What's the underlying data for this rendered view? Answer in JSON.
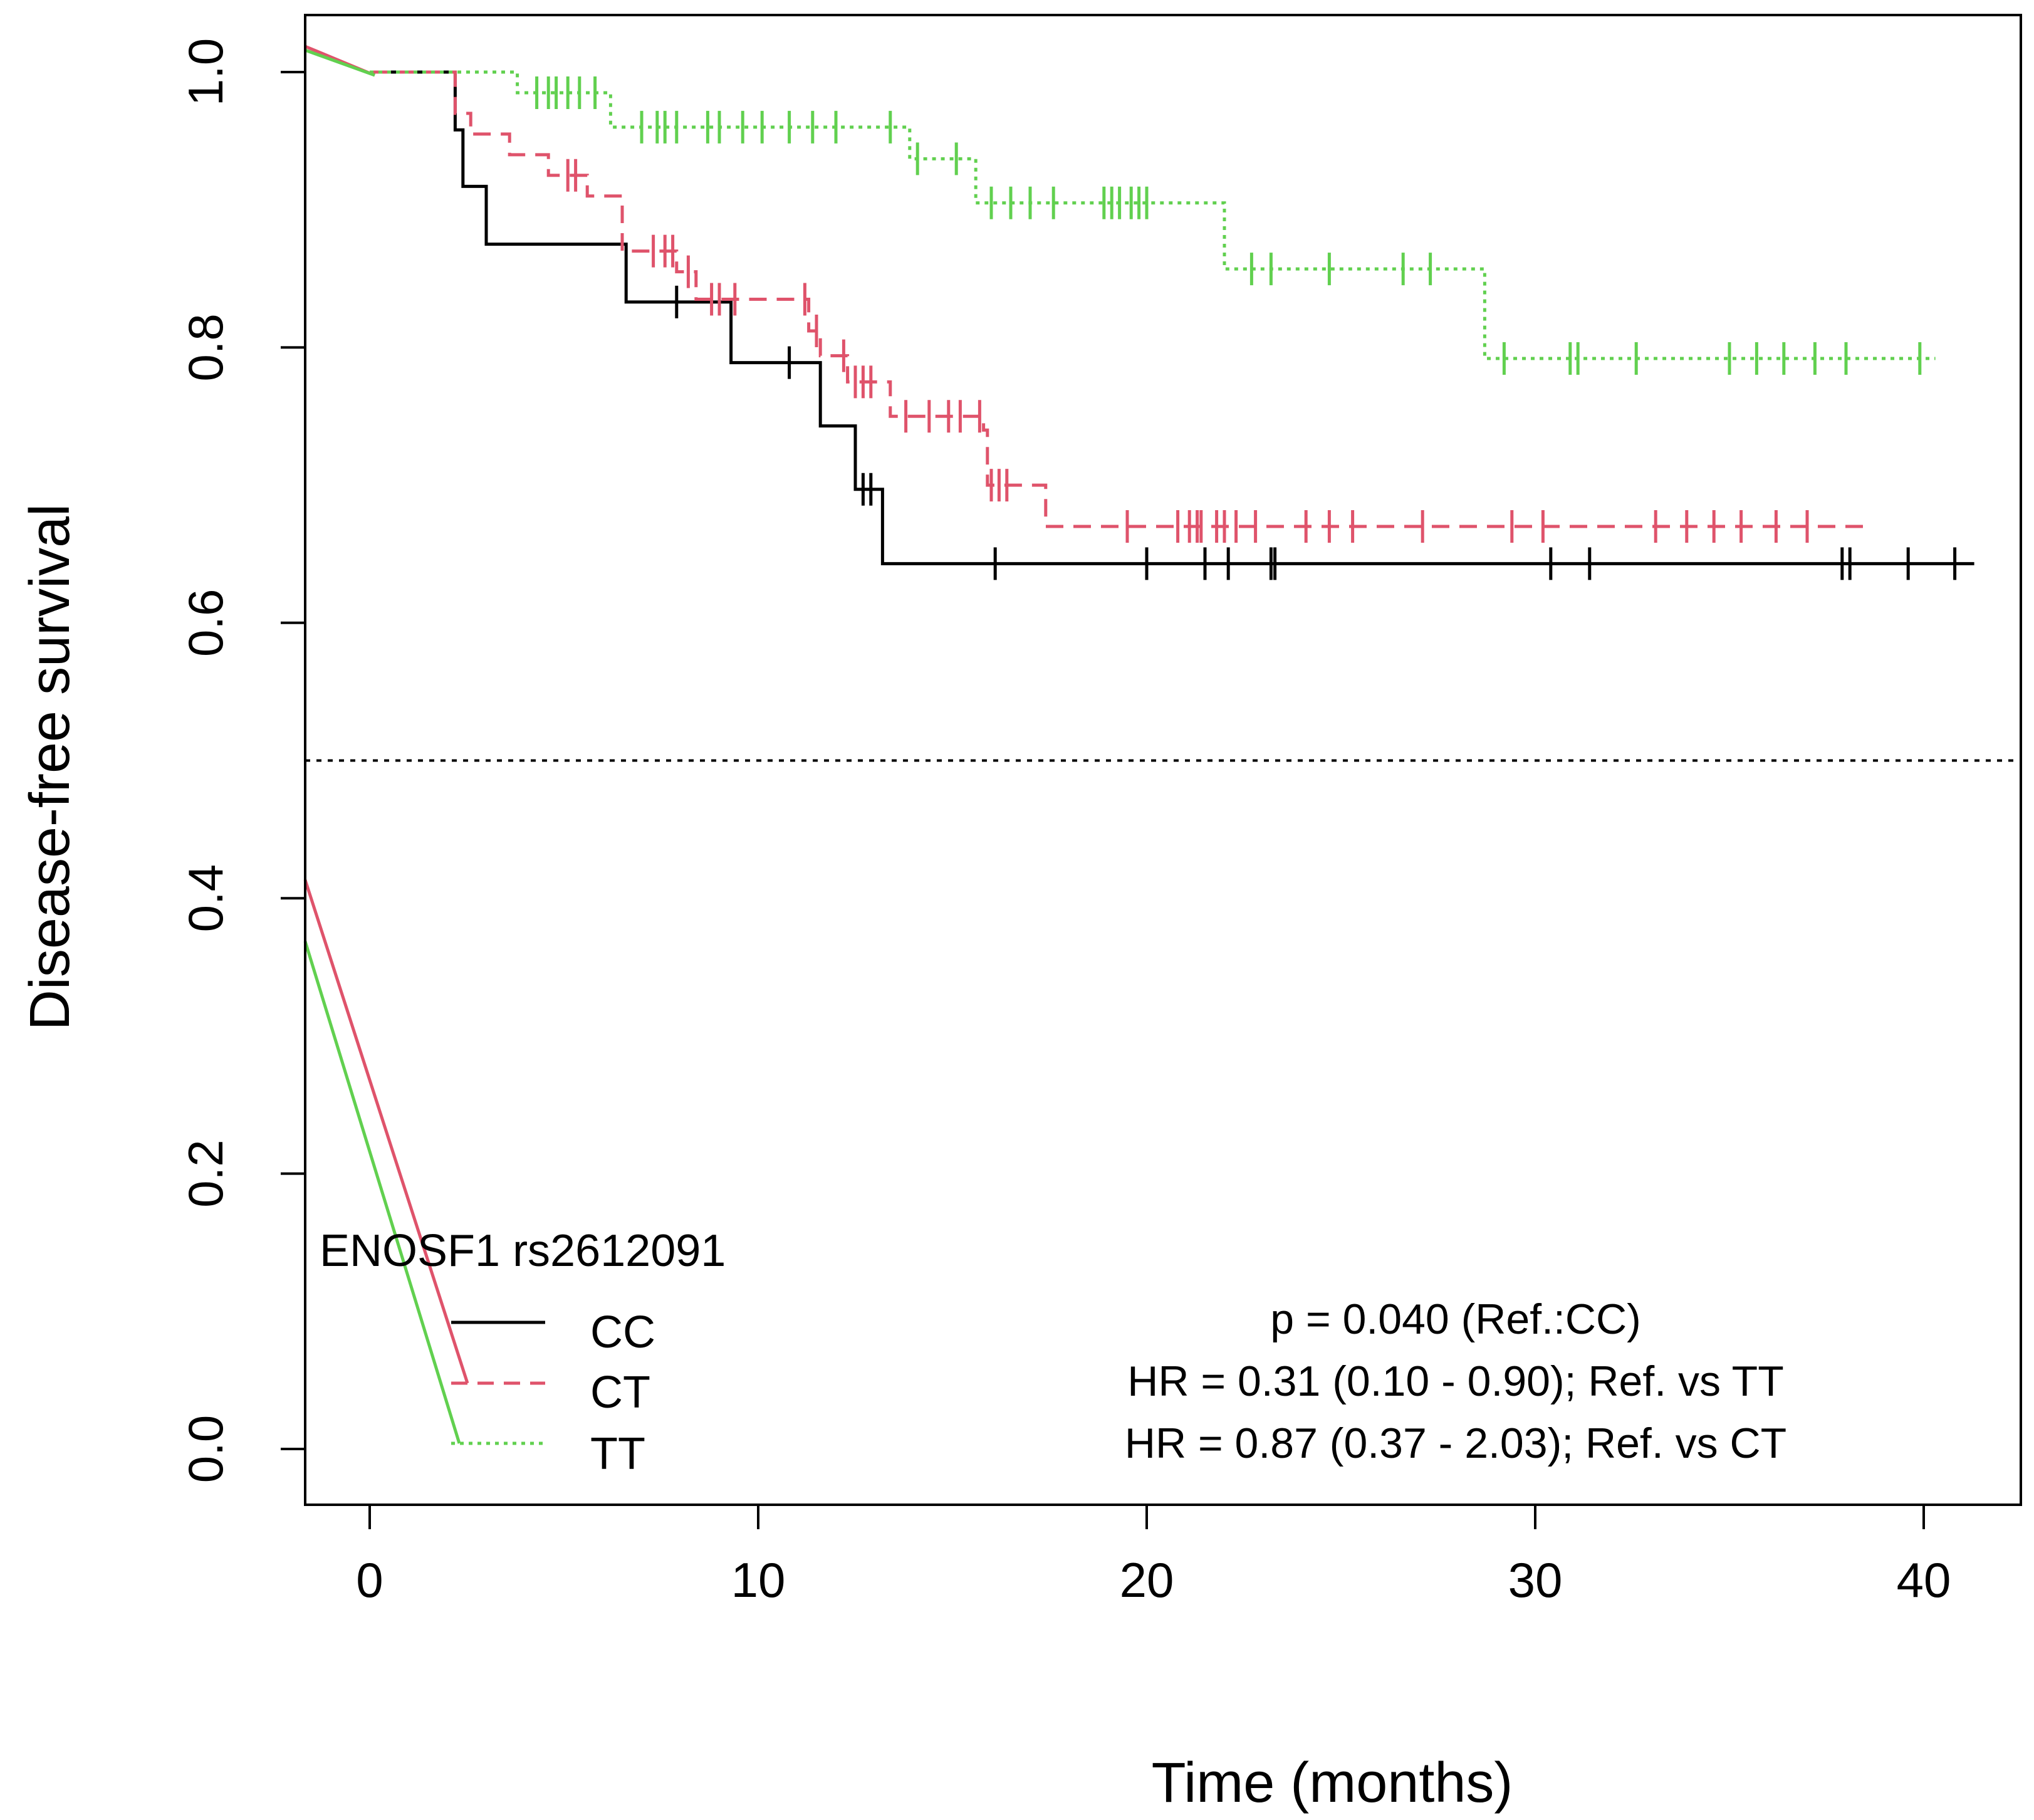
{
  "chart_data": {
    "type": "line",
    "subtype": "kaplan-meier",
    "xlabel": "Time (months)",
    "ylabel": "Disease-free survival",
    "xlim": [
      -2.1,
      42.0
    ],
    "ylim": [
      -0.04,
      1.04
    ],
    "xticks": [
      0,
      10,
      20,
      30,
      40
    ],
    "yticks": [
      0.0,
      0.2,
      0.4,
      0.6,
      0.8,
      1.0
    ],
    "xtick_labels": [
      "0",
      "10",
      "20",
      "30",
      "40"
    ],
    "ytick_labels": [
      "0.0",
      "0.2",
      "0.4",
      "0.6",
      "0.8",
      "1.0"
    ],
    "median_line": 0.5,
    "legend": {
      "title": "ENOSF1 rs2612091",
      "position": "bottom-left"
    },
    "series": [
      {
        "name": "CC",
        "color": "#000000",
        "dash": "solid",
        "steps": [
          [
            0,
            1.0
          ],
          [
            2.2,
            0.958
          ],
          [
            2.4,
            0.917
          ],
          [
            3.0,
            0.875
          ],
          [
            6.6,
            0.833
          ],
          [
            9.3,
            0.789
          ],
          [
            11.6,
            0.743
          ],
          [
            12.5,
            0.697
          ],
          [
            13.2,
            0.643
          ]
        ],
        "end": 41.3,
        "censor": [
          7.9,
          10.8,
          12.7,
          12.9,
          16.1,
          20.0,
          21.5,
          22.1,
          23.2,
          23.3,
          30.4,
          31.4,
          37.9,
          38.1,
          39.6,
          40.8
        ]
      },
      {
        "name": "CT",
        "color": "#df536b",
        "dash": "dashed",
        "steps": [
          [
            0,
            1.0
          ],
          [
            2.2,
            0.97
          ],
          [
            2.6,
            0.955
          ],
          [
            3.6,
            0.94
          ],
          [
            4.6,
            0.925
          ],
          [
            5.6,
            0.91
          ],
          [
            6.5,
            0.87
          ],
          [
            7.9,
            0.855
          ],
          [
            8.4,
            0.835
          ],
          [
            11.3,
            0.812
          ],
          [
            11.6,
            0.794
          ],
          [
            12.3,
            0.775
          ],
          [
            13.4,
            0.75
          ],
          [
            15.8,
            0.74
          ],
          [
            15.9,
            0.7
          ],
          [
            17.4,
            0.67
          ]
        ],
        "end": 38.6,
        "censor": [
          5.1,
          5.3,
          7.3,
          7.6,
          7.8,
          8.2,
          8.8,
          9.0,
          9.4,
          11.2,
          11.5,
          12.2,
          12.5,
          12.7,
          12.9,
          13.8,
          14.4,
          14.9,
          15.2,
          15.7,
          16.0,
          16.2,
          16.4,
          19.5,
          20.8,
          21.1,
          21.3,
          21.4,
          21.8,
          22.0,
          22.3,
          22.8,
          24.1,
          24.7,
          25.3,
          27.1,
          29.4,
          30.2,
          33.1,
          33.9,
          34.6,
          35.3,
          36.2,
          37.0
        ]
      },
      {
        "name": "TT",
        "color": "#61d04f",
        "dash": "dotted",
        "steps": [
          [
            0,
            1.0
          ],
          [
            3.8,
            0.985
          ],
          [
            6.2,
            0.96
          ],
          [
            13.9,
            0.937
          ],
          [
            15.6,
            0.905
          ],
          [
            22.0,
            0.857
          ],
          [
            28.7,
            0.792
          ]
        ],
        "end": 40.3,
        "censor": [
          4.3,
          4.6,
          4.8,
          5.1,
          5.4,
          5.8,
          7.0,
          7.4,
          7.6,
          7.9,
          8.7,
          9.0,
          9.6,
          10.1,
          10.8,
          11.4,
          12.0,
          13.4,
          14.1,
          15.1,
          16.0,
          16.5,
          17.0,
          17.6,
          18.9,
          19.1,
          19.3,
          19.6,
          19.8,
          20.0,
          22.7,
          23.2,
          24.7,
          26.6,
          27.3,
          29.2,
          30.9,
          31.1,
          32.6,
          35.0,
          35.7,
          36.4,
          37.2,
          38.0,
          39.9
        ]
      }
    ],
    "annotations": [
      "p = 0.040 (Ref.:CC)",
      "HR = 0.31 (0.10 - 0.90); Ref. vs TT",
      "HR = 0.87 (0.37 - 2.03); Ref. vs CT"
    ]
  }
}
